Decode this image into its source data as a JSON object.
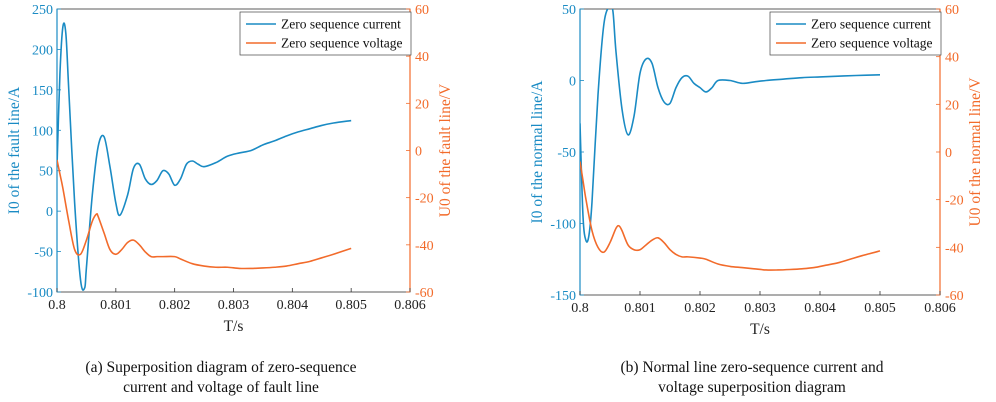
{
  "colors": {
    "current": "#1a8bc4",
    "voltage": "#f26b2b",
    "axis_left": "#1a8bc4",
    "axis_right": "#f26b2b",
    "frame": "#333333"
  },
  "chart_data": [
    {
      "type": "line",
      "xlabel": "T/s",
      "ylabel_left": "I0 of the fault line/A",
      "ylabel_right": "U0 of the fault line/V",
      "xlim": [
        0.8,
        0.806
      ],
      "ylim_left": [
        -100,
        250
      ],
      "ylim_right": [
        -60,
        60
      ],
      "x_ticks": [
        "0.8",
        "0.801",
        "0.802",
        "0.803",
        "0.804",
        "0.805",
        "0.806"
      ],
      "y_ticks_left": [
        "-100",
        "-50",
        "0",
        "50",
        "100",
        "150",
        "200",
        "250"
      ],
      "y_ticks_right": [
        "-60",
        "-40",
        "-20",
        "0",
        "20",
        "40",
        "60"
      ],
      "legend": [
        "Zero sequence current",
        "Zero sequence voltage"
      ],
      "caption": [
        "(a) Superposition diagram of zero-sequence",
        "current and voltage of fault line"
      ],
      "series": [
        {
          "name": "Zero sequence current",
          "axis": "left",
          "x": [
            0.8,
            0.80005,
            0.8001,
            0.80015,
            0.8002,
            0.8003,
            0.8004,
            0.80047,
            0.8005,
            0.8006,
            0.8007,
            0.8008,
            0.8009,
            0.801,
            0.80107,
            0.8012,
            0.8013,
            0.8014,
            0.8015,
            0.8016,
            0.8017,
            0.8018,
            0.8019,
            0.802,
            0.8021,
            0.8022,
            0.8023,
            0.8024,
            0.8025,
            0.8027,
            0.8029,
            0.8031,
            0.8033,
            0.8035,
            0.8037,
            0.8039,
            0.8041,
            0.8043,
            0.8045,
            0.8047,
            0.805
          ],
          "y": [
            55,
            170,
            228,
            220,
            150,
            10,
            -85,
            -95,
            -70,
            20,
            80,
            92,
            55,
            10,
            -5,
            20,
            53,
            58,
            40,
            33,
            38,
            50,
            46,
            32,
            40,
            58,
            62,
            58,
            55,
            60,
            68,
            72,
            75,
            82,
            87,
            93,
            98,
            102,
            106,
            109,
            112
          ]
        },
        {
          "name": "Zero sequence voltage",
          "axis": "right",
          "x": [
            0.8,
            0.80005,
            0.8001,
            0.8002,
            0.8003,
            0.8004,
            0.8005,
            0.8006,
            0.80067,
            0.8007,
            0.8008,
            0.8009,
            0.801,
            0.8011,
            0.8012,
            0.8013,
            0.8014,
            0.8015,
            0.8016,
            0.8017,
            0.8018,
            0.802,
            0.8021,
            0.8023,
            0.8025,
            0.8027,
            0.8029,
            0.8031,
            0.8033,
            0.8035,
            0.8037,
            0.8039,
            0.8041,
            0.8043,
            0.8045,
            0.8047,
            0.805
          ],
          "y": [
            -4,
            -10,
            -16,
            -30,
            -42,
            -44,
            -38,
            -30,
            -27,
            -28,
            -35,
            -42,
            -44,
            -42,
            -39,
            -38,
            -40,
            -43,
            -45,
            -45,
            -45,
            -45,
            -46,
            -48,
            -49,
            -49.5,
            -49.5,
            -50,
            -50,
            -49.8,
            -49.5,
            -49,
            -48,
            -47,
            -45.5,
            -44,
            -41.5
          ]
        }
      ]
    },
    {
      "type": "line",
      "xlabel": "T/s",
      "ylabel_left": "I0 of the normal line/A",
      "ylabel_right": "U0 of the normal line/V",
      "xlim": [
        0.8,
        0.806
      ],
      "ylim_left": [
        -150,
        50
      ],
      "ylim_right": [
        -60,
        60
      ],
      "x_ticks": [
        "0.8",
        "0.801",
        "0.802",
        "0.803",
        "0.804",
        "0.805",
        "0.806"
      ],
      "y_ticks_left": [
        "-150",
        "-100",
        "-50",
        "0",
        "50"
      ],
      "y_ticks_right": [
        "-60",
        "-40",
        "-20",
        "0",
        "20",
        "40",
        "60"
      ],
      "legend": [
        "Zero sequence current",
        "Zero sequence voltage"
      ],
      "caption": [
        "(b) Normal line zero-sequence current and",
        "voltage superposition diagram"
      ],
      "series": [
        {
          "name": "Zero sequence current",
          "axis": "left",
          "x": [
            0.8,
            0.80005,
            0.8001,
            0.80015,
            0.8002,
            0.8003,
            0.8004,
            0.8005,
            0.80055,
            0.8006,
            0.8007,
            0.8008,
            0.8009,
            0.801,
            0.8011,
            0.8012,
            0.8013,
            0.8014,
            0.8015,
            0.8016,
            0.8017,
            0.8018,
            0.8019,
            0.802,
            0.8021,
            0.8022,
            0.8023,
            0.8025,
            0.8027,
            0.8029,
            0.8031,
            0.8034,
            0.8037,
            0.804,
            0.8043,
            0.8046,
            0.805
          ],
          "y": [
            -30,
            -95,
            -112,
            -108,
            -85,
            -10,
            40,
            52,
            48,
            20,
            -20,
            -38,
            -25,
            5,
            15,
            12,
            -5,
            -15,
            -16,
            -5,
            2,
            3,
            -2,
            -5,
            -8,
            -5,
            0,
            0,
            -2,
            -1,
            0,
            1,
            2,
            2.5,
            3,
            3.5,
            4
          ]
        },
        {
          "name": "Zero sequence voltage",
          "axis": "right",
          "x": [
            0.8,
            0.80005,
            0.8001,
            0.8002,
            0.8003,
            0.8004,
            0.8005,
            0.8006,
            0.80065,
            0.8007,
            0.8008,
            0.8009,
            0.801,
            0.8011,
            0.8012,
            0.8013,
            0.8014,
            0.8015,
            0.8016,
            0.8017,
            0.8018,
            0.802,
            0.8021,
            0.8023,
            0.8025,
            0.8027,
            0.8029,
            0.8031,
            0.8033,
            0.8035,
            0.8037,
            0.8039,
            0.8041,
            0.8043,
            0.8045,
            0.8047,
            0.805
          ],
          "y": [
            -4,
            -12,
            -20,
            -33,
            -40,
            -42,
            -38,
            -32,
            -31,
            -33,
            -39,
            -41,
            -41,
            -39,
            -37,
            -36,
            -38,
            -41,
            -43,
            -44,
            -44,
            -44.5,
            -45,
            -47,
            -48,
            -48.5,
            -49,
            -49.5,
            -49.5,
            -49.3,
            -49,
            -48.5,
            -47.5,
            -46.5,
            -45,
            -43.5,
            -41.5
          ]
        }
      ]
    }
  ]
}
